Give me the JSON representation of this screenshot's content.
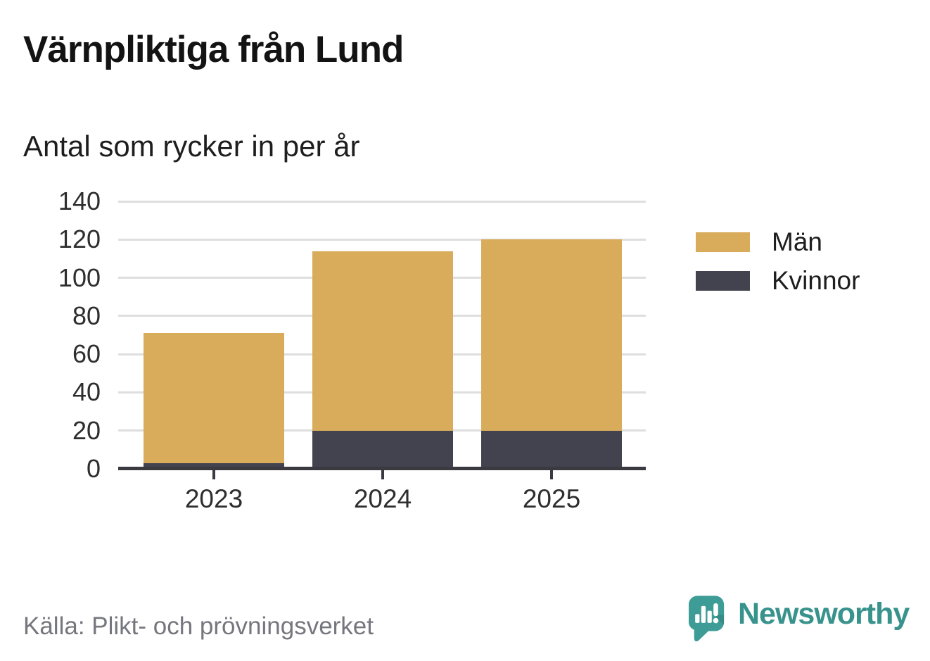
{
  "title": "Värnpliktiga från Lund",
  "subtitle": "Antal som rycker in per år",
  "source": "Källa: Plikt- och prövningsverket",
  "branding": {
    "name": "Newsworthy",
    "color": "#3e9c96"
  },
  "colors": {
    "men": "#d9ac5c",
    "women": "#434350",
    "axis": "#3a3a40",
    "grid": "#dedede"
  },
  "chart_data": {
    "type": "bar",
    "stacked": true,
    "title": "Värnpliktiga från Lund",
    "subtitle": "Antal som rycker in per år",
    "categories": [
      "2023",
      "2024",
      "2025"
    ],
    "series": [
      {
        "name": "Män",
        "color": "#d9ac5c",
        "values": [
          68,
          94,
          100
        ]
      },
      {
        "name": "Kvinnor",
        "color": "#434350",
        "values": [
          3,
          20,
          20
        ]
      }
    ],
    "stack_order_bottom_to_top": [
      "Kvinnor",
      "Män"
    ],
    "totals": [
      71,
      114,
      120
    ],
    "xlabel": "",
    "ylabel": "",
    "ylim": [
      0,
      140
    ],
    "yticks": [
      0,
      20,
      40,
      60,
      80,
      100,
      120,
      140
    ],
    "grid": true,
    "legend_position": "right"
  }
}
